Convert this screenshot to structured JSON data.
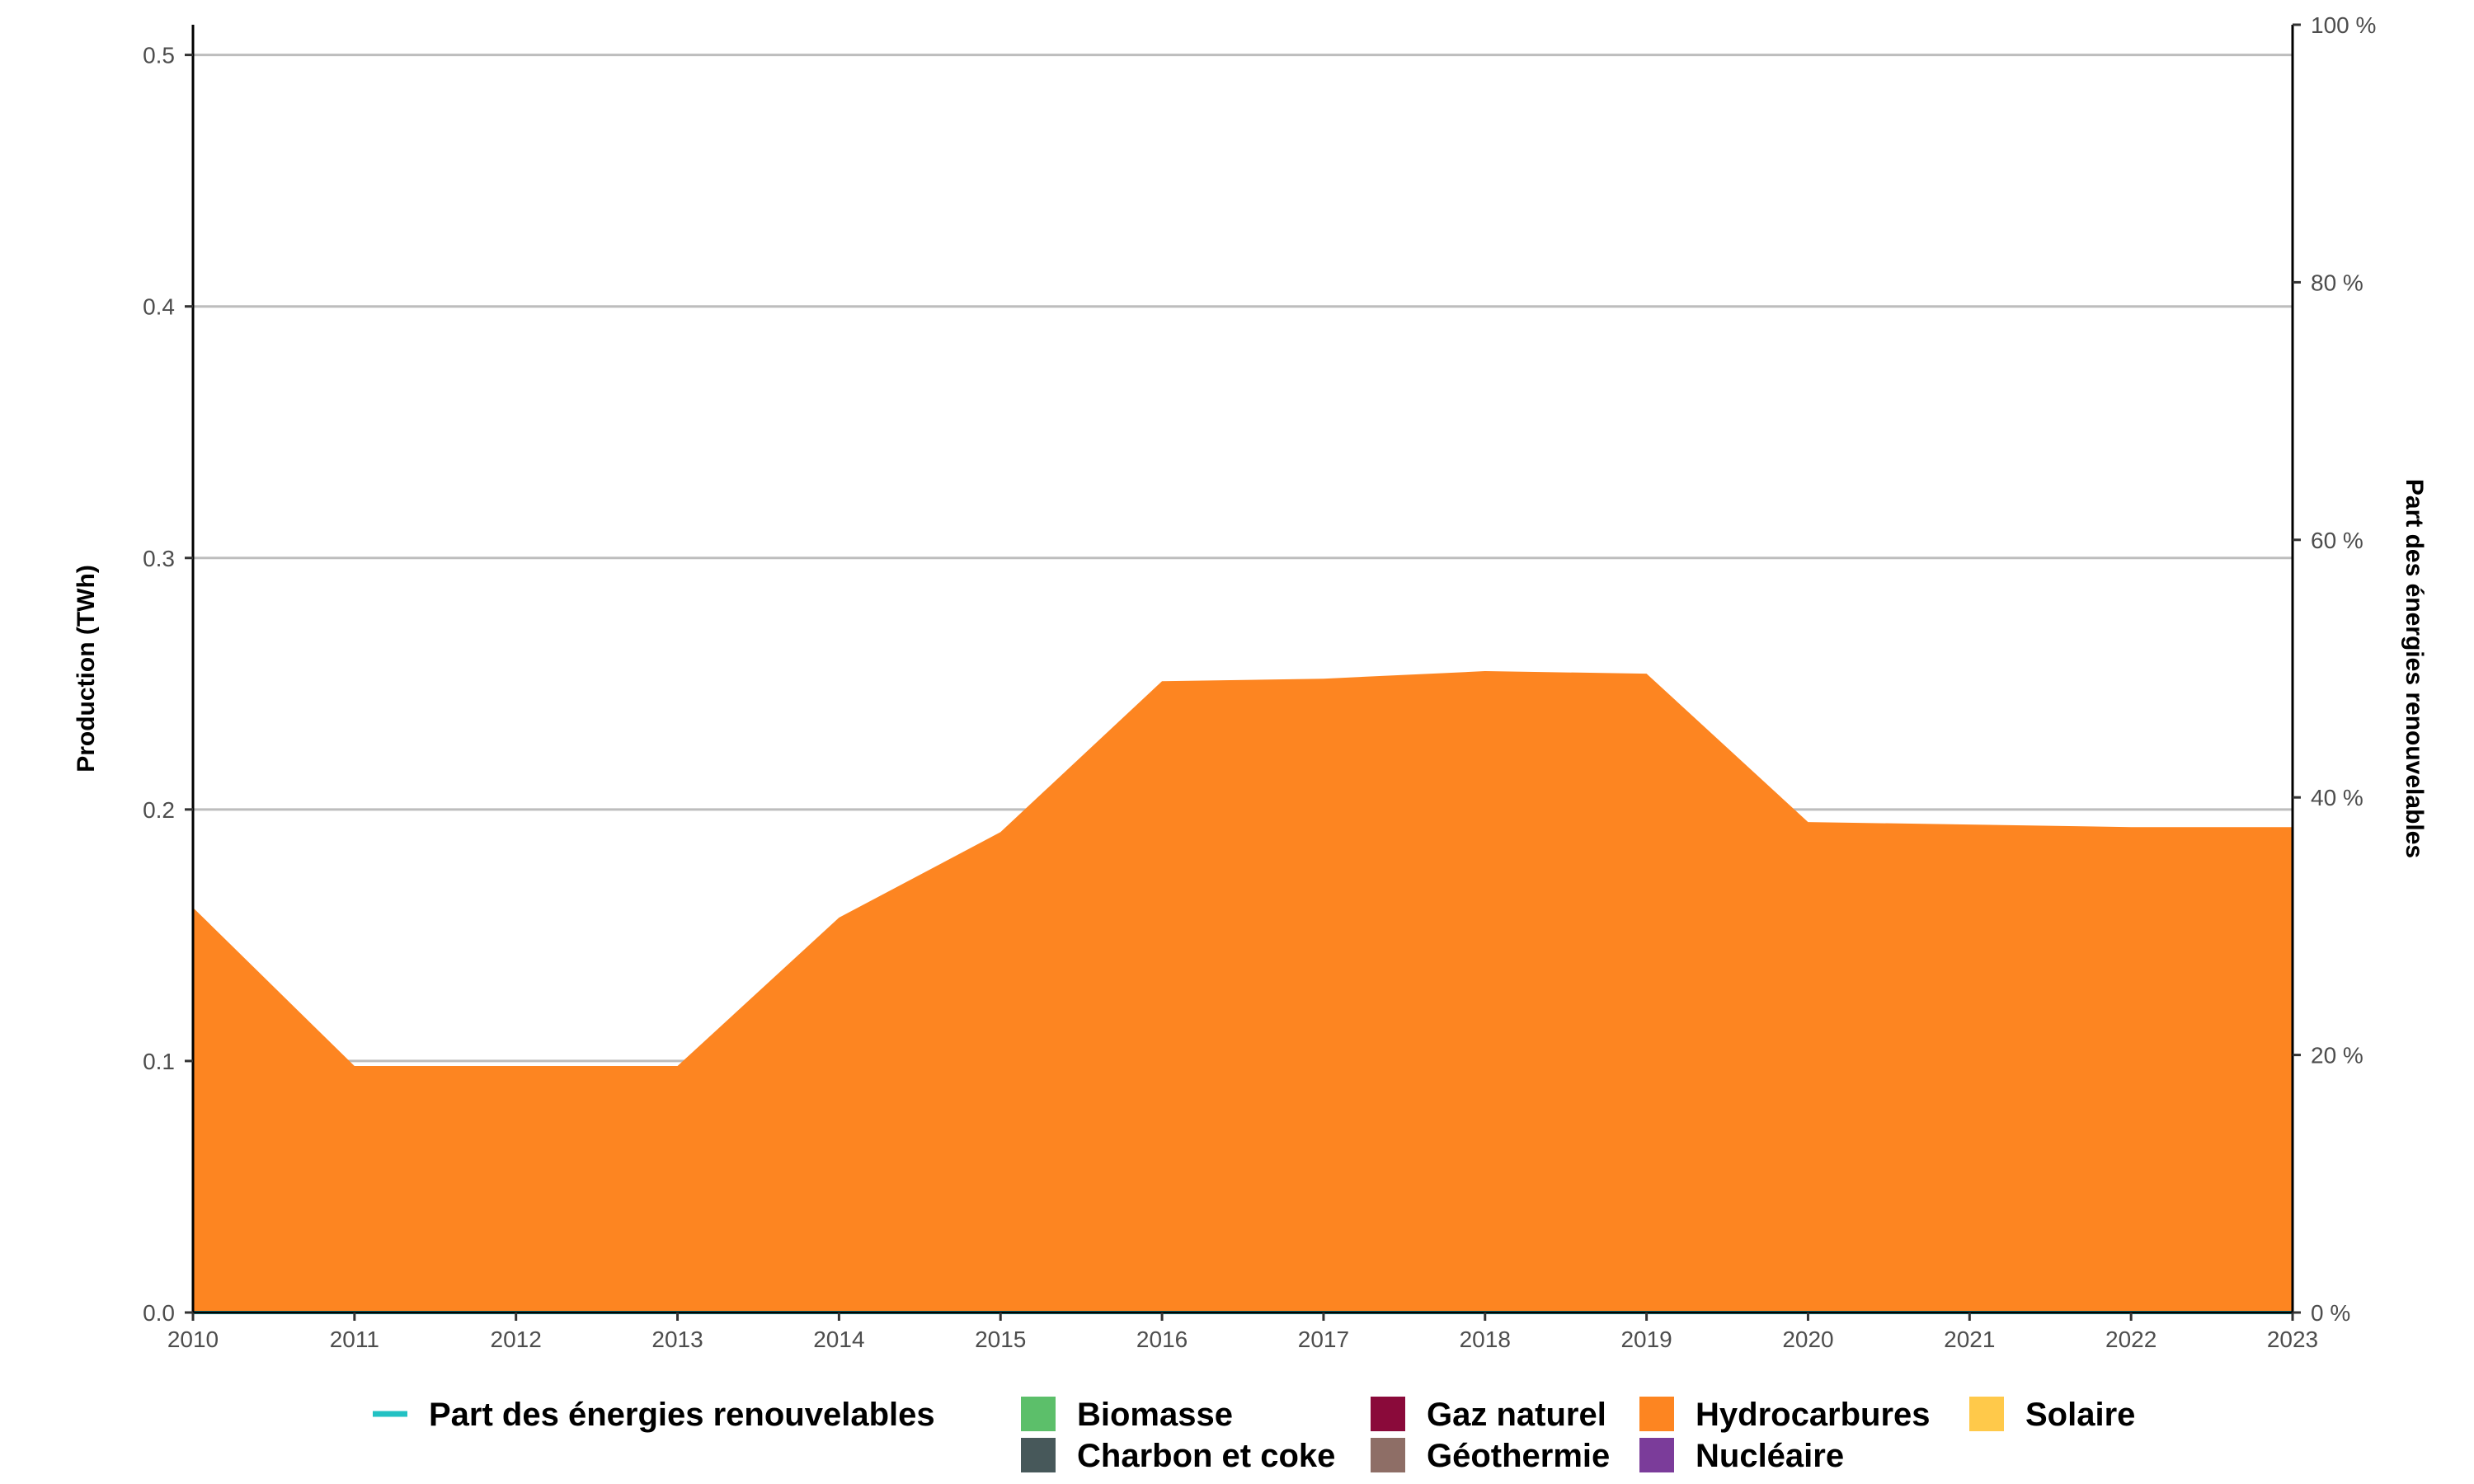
{
  "chart_data": {
    "type": "area",
    "x": [
      2010,
      2011,
      2012,
      2013,
      2014,
      2015,
      2016,
      2017,
      2018,
      2019,
      2020,
      2021,
      2022,
      2023
    ],
    "x_tick_labels": [
      "2010",
      "2011",
      "2012",
      "2013",
      "2014",
      "2015",
      "2016",
      "2017",
      "2018",
      "2019",
      "2020",
      "2021",
      "2022",
      "2023"
    ],
    "xlim": [
      2010,
      2023
    ],
    "ylabel": "Production (TWh)",
    "ylim": [
      0,
      0.512
    ],
    "y_ticks": [
      0.0,
      0.1,
      0.2,
      0.3,
      0.4,
      0.5
    ],
    "y_tick_labels": [
      "0.0",
      "0.1",
      "0.2",
      "0.3",
      "0.4",
      "0.5"
    ],
    "y2label": "Part des énergies renouvelables",
    "y2lim": [
      0,
      100
    ],
    "y2_ticks": [
      0,
      20,
      40,
      60,
      80,
      100
    ],
    "y2_tick_labels": [
      "0 %",
      "20 %",
      "40 %",
      "60 %",
      "80 %",
      "100 %"
    ],
    "grid": "horizontal",
    "legend_position": "bottom",
    "series": [
      {
        "name": "Biomasse",
        "kind": "area",
        "color": "#5cbf6a",
        "values": [
          0,
          0,
          0,
          0,
          0,
          0,
          0,
          0,
          0,
          0,
          0,
          0,
          0,
          0
        ]
      },
      {
        "name": "Charbon et coke",
        "kind": "area",
        "color": "#47585a",
        "values": [
          0,
          0,
          0,
          0,
          0,
          0,
          0,
          0,
          0,
          0,
          0,
          0,
          0,
          0
        ]
      },
      {
        "name": "Gaz naturel",
        "kind": "area",
        "color": "#8a0a3a",
        "values": [
          0,
          0,
          0,
          0,
          0,
          0,
          0,
          0,
          0,
          0,
          0,
          0,
          0,
          0
        ]
      },
      {
        "name": "Géothermie",
        "kind": "area",
        "color": "#8e6e66",
        "values": [
          0,
          0,
          0,
          0,
          0,
          0,
          0,
          0,
          0,
          0,
          0,
          0,
          0,
          0
        ]
      },
      {
        "name": "Hydrocarbures",
        "kind": "area",
        "color": "#fd8521",
        "values": [
          0.161,
          0.098,
          0.098,
          0.098,
          0.157,
          0.191,
          0.251,
          0.252,
          0.255,
          0.254,
          0.195,
          0.194,
          0.193,
          0.193
        ]
      },
      {
        "name": "Nucléaire",
        "kind": "area",
        "color": "#7b3c9a",
        "values": [
          0,
          0,
          0,
          0,
          0,
          0,
          0,
          0,
          0,
          0,
          0,
          0,
          0,
          0
        ]
      },
      {
        "name": "Solaire",
        "kind": "area",
        "color": "#ffc94a",
        "values": [
          0,
          0,
          0,
          0,
          0,
          0,
          0,
          0,
          0,
          0,
          0,
          0,
          0,
          0
        ]
      },
      {
        "name": "Part des énergies renouvelables",
        "kind": "line",
        "axis": "right",
        "color": "#22c1c3",
        "values": [
          0,
          0,
          0,
          0,
          0,
          0,
          0,
          0,
          0,
          0,
          0,
          0,
          0,
          0
        ]
      }
    ],
    "legend": [
      {
        "label": "Part des énergies renouvelables",
        "symbol": "line",
        "color": "#22c1c3"
      },
      {
        "label": "Biomasse",
        "symbol": "square",
        "color": "#5cbf6a"
      },
      {
        "label": "Charbon et coke",
        "symbol": "square",
        "color": "#47585a"
      },
      {
        "label": "Gaz naturel",
        "symbol": "square",
        "color": "#8a0a3a"
      },
      {
        "label": "Géothermie",
        "symbol": "square",
        "color": "#8e6e66"
      },
      {
        "label": "Hydrocarbures",
        "symbol": "square",
        "color": "#fd8521"
      },
      {
        "label": "Nucléaire",
        "symbol": "square",
        "color": "#7b3c9a"
      },
      {
        "label": "Solaire",
        "symbol": "square",
        "color": "#ffc94a"
      }
    ]
  }
}
